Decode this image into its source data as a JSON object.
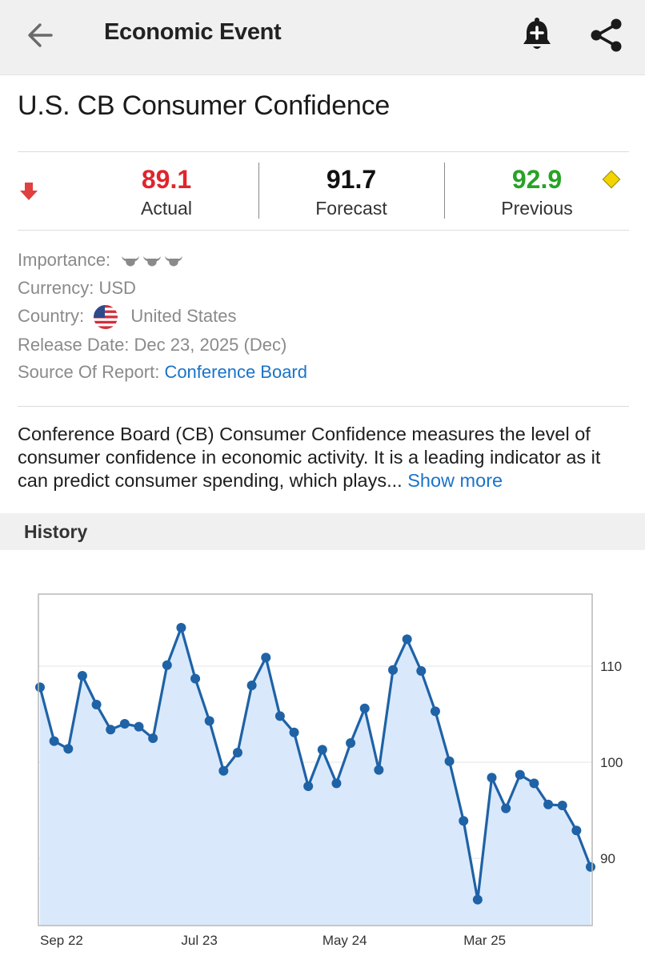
{
  "header": {
    "title": "Economic Event",
    "back_icon": "arrow-left-icon",
    "alert_icon": "bell-plus-icon",
    "share_icon": "share-icon"
  },
  "event": {
    "title": "U.S. CB Consumer Confidence",
    "direction_icon": "arrow-down-icon",
    "actual": {
      "value": "89.1",
      "label": "Actual",
      "color": "#e0242c"
    },
    "forecast": {
      "value": "91.7",
      "label": "Forecast",
      "color": "#111111"
    },
    "previous": {
      "value": "92.9",
      "label": "Previous",
      "color": "#27a326"
    },
    "revised_icon": "diamond-icon"
  },
  "info": {
    "importance_label": "Importance:",
    "importance_icon": "bull-icon",
    "currency_label": "Currency:",
    "currency_value": "USD",
    "country_label": "Country:",
    "country_value": "United States",
    "country_flag_icon": "us-flag-icon",
    "release_label": "Release Date:",
    "release_value": "Dec 23, 2025 (Dec)",
    "source_label": "Source Of Report:",
    "source_value": "Conference Board"
  },
  "description": {
    "text": "Conference Board (CB) Consumer Confidence measures the level of consumer confidence in economic activity. It is a leading indicator as it can predict consumer spending, which plays...",
    "show_more": "Show more"
  },
  "history": {
    "title": "History"
  },
  "chart_data": {
    "type": "area",
    "title": "",
    "xlabel": "",
    "ylabel": "",
    "x_ticks": [
      "Sep 22",
      "Jul 23",
      "May 24",
      "Mar 25"
    ],
    "y_ticks": [
      90,
      100,
      110
    ],
    "ylim": [
      83,
      117.5
    ],
    "grid": "horizontal",
    "y_axis_position": "right",
    "line_color": "#1f62a6",
    "fill_color": "#d9e9fb",
    "series": [
      {
        "x": [
          "Sep 22",
          "Oct 22",
          "Nov 22",
          "Dec 22",
          "Jan 23",
          "Feb 23",
          "Mar 23",
          "Apr 23",
          "May 23",
          "Jun 23",
          "Jul 23",
          "Aug 23",
          "Sep 23",
          "Oct 23",
          "Nov 23",
          "Dec 23",
          "Jan 24",
          "Feb 24",
          "Mar 24",
          "Apr 24",
          "May 24",
          "Jun 24",
          "Jul 24",
          "Aug 24",
          "Sep 24",
          "Oct 24",
          "Nov 24",
          "Dec 24",
          "Jan 25",
          "Feb 25",
          "Mar 25",
          "Apr 25",
          "May 25",
          "Jun 25",
          "Jul 25",
          "Aug 25",
          "Sep 25",
          "Oct 25",
          "Nov 25",
          "Dec 25"
        ],
        "values": [
          107.8,
          102.2,
          101.4,
          109.0,
          106.0,
          103.4,
          104.0,
          103.7,
          102.5,
          110.1,
          114.0,
          108.7,
          104.3,
          99.1,
          101.0,
          108.0,
          110.9,
          104.8,
          103.1,
          97.5,
          101.3,
          97.8,
          102.0,
          105.6,
          99.2,
          109.6,
          112.8,
          109.5,
          105.3,
          100.1,
          93.9,
          85.7,
          98.4,
          95.2,
          98.7,
          97.8,
          95.6,
          95.5,
          92.9,
          89.1
        ]
      }
    ]
  }
}
